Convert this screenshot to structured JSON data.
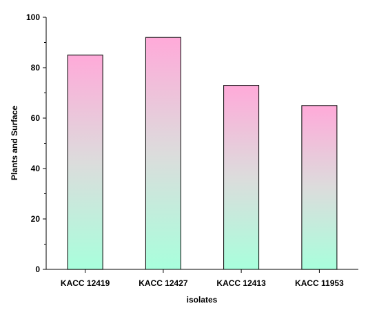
{
  "chart_data": {
    "type": "bar",
    "title": "",
    "xlabel": "isolates",
    "ylabel": "Plants and Surface",
    "categories": [
      "KACC 12419",
      "KACC 12427",
      "KACC 12413",
      "KACC 11953"
    ],
    "values": [
      85,
      92,
      73,
      65
    ],
    "ylim": [
      0,
      100
    ],
    "yticks": [
      0,
      20,
      40,
      60,
      80,
      100
    ],
    "grid": false,
    "legend": "none",
    "bar_gradient": {
      "top": "#ffaad9",
      "middle": "#dcdcdc",
      "bottom": "#a8ffdc"
    },
    "bar_outline": "#000000"
  }
}
